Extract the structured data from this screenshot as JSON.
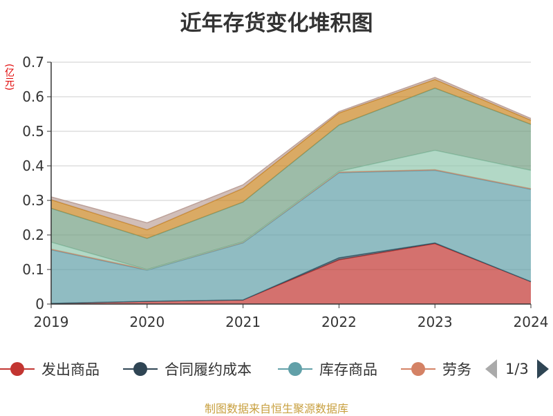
{
  "title": "近年存货变化堆积图",
  "unit_label": "(亿元)",
  "source": "制图数据来自恒生聚源数据库",
  "legend": {
    "items": [
      {
        "label": "发出商品",
        "color": "#c23531"
      },
      {
        "label": "合同履约成本",
        "color": "#2f4554"
      },
      {
        "label": "库存商品",
        "color": "#61a0a8"
      },
      {
        "label": "劳务",
        "color": "#d48265"
      }
    ],
    "page": "1/3"
  },
  "chart_data": {
    "type": "area",
    "stacked": true,
    "categories": [
      "2019",
      "2020",
      "2021",
      "2022",
      "2023",
      "2024"
    ],
    "ylim": [
      0,
      0.7
    ],
    "yticks": [
      "0",
      "0.1",
      "0.2",
      "0.3",
      "0.4",
      "0.5",
      "0.6",
      "0.7"
    ],
    "ylabel": "(亿元)",
    "grid": true,
    "legend_position": "bottom",
    "series": [
      {
        "name": "发出商品",
        "color": "#c23531",
        "values": [
          0.002,
          0.008,
          0.012,
          0.128,
          0.175,
          0.065
        ]
      },
      {
        "name": "合同履约成本",
        "color": "#2f4554",
        "values": [
          0.0,
          0.0,
          0.0,
          0.006,
          0.002,
          0.0
        ]
      },
      {
        "name": "库存商品",
        "color": "#61a0a8",
        "values": [
          0.155,
          0.09,
          0.165,
          0.246,
          0.21,
          0.267
        ]
      },
      {
        "name": "劳务",
        "color": "#d48265",
        "values": [
          0.002,
          0.002,
          0.003,
          0.002,
          0.002,
          0.002
        ]
      },
      {
        "color": "#91c7ae",
        "values": [
          0.02,
          0.0,
          0.0,
          0.002,
          0.056,
          0.053
        ]
      },
      {
        "color": "#749f83",
        "values": [
          0.098,
          0.09,
          0.115,
          0.134,
          0.18,
          0.133
        ]
      },
      {
        "color": "#ca8622",
        "values": [
          0.025,
          0.025,
          0.04,
          0.035,
          0.025,
          0.012
        ]
      },
      {
        "color": "#bda29a",
        "values": [
          0.008,
          0.02,
          0.01,
          0.004,
          0.006,
          0.005
        ]
      }
    ]
  }
}
